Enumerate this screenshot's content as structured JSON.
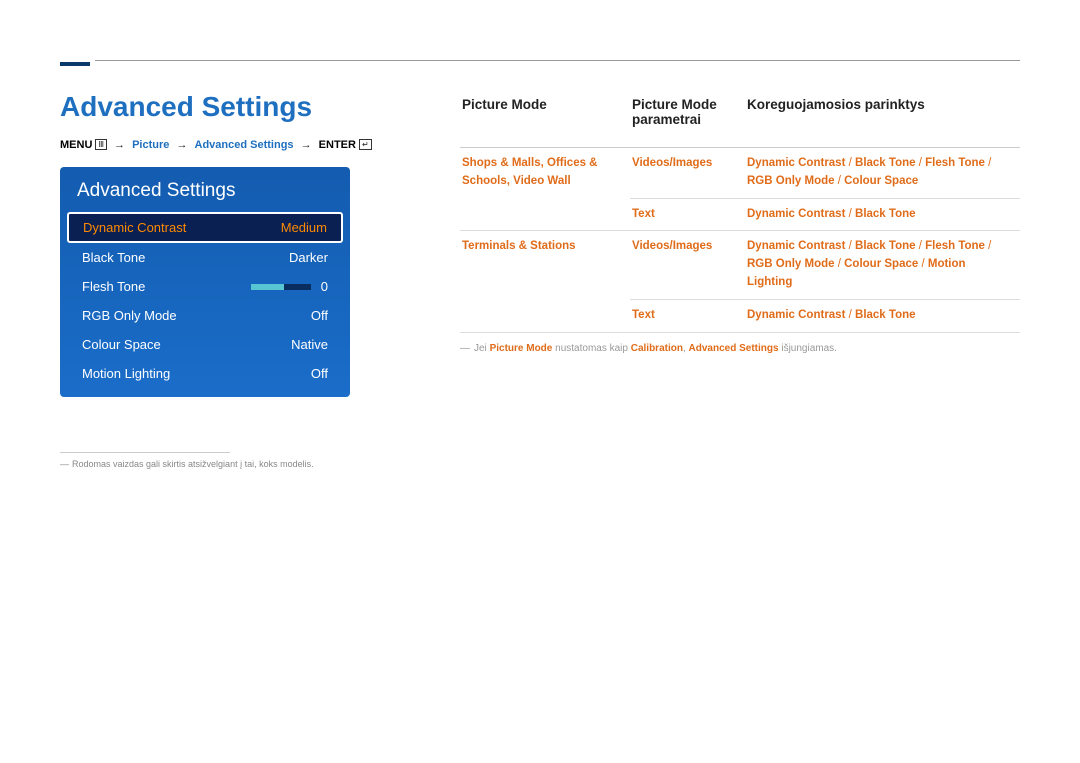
{
  "page": {
    "title": "Advanced Settings"
  },
  "breadcrumb": {
    "menu": "MENU",
    "picture": "Picture",
    "advanced": "Advanced Settings",
    "enter": "ENTER"
  },
  "panel": {
    "title": "Advanced Settings",
    "rows": {
      "dynamic_contrast": {
        "label": "Dynamic Contrast",
        "value": "Medium"
      },
      "black_tone": {
        "label": "Black Tone",
        "value": "Darker"
      },
      "flesh_tone": {
        "label": "Flesh Tone",
        "value": "0"
      },
      "rgb_only": {
        "label": "RGB Only Mode",
        "value": "Off"
      },
      "colour_space": {
        "label": "Colour Space",
        "value": "Native"
      },
      "motion_lighting": {
        "label": "Motion Lighting",
        "value": "Off"
      }
    }
  },
  "footnote_left": "Rodomas vaizdas gali skirtis atsižvelgiant į tai, koks modelis.",
  "table": {
    "headers": {
      "c1": "Picture Mode",
      "c2": "Picture Mode parametrai",
      "c3": "Koreguojamosios parinktys"
    },
    "row1": {
      "mode_a": "Shops & Malls",
      "mode_b": "Offices & Schools",
      "mode_c": "Video Wall",
      "param": "Videos/Images",
      "o1": "Dynamic Contrast",
      "o2": "Black Tone",
      "o3": "Flesh Tone",
      "o4": "RGB Only Mode",
      "o5": "Colour Space"
    },
    "row2": {
      "param": "Text",
      "o1": "Dynamic Contrast",
      "o2": "Black Tone"
    },
    "row3": {
      "mode": "Terminals & Stations",
      "param": "Videos/Images",
      "o1": "Dynamic Contrast",
      "o2": "Black Tone",
      "o3": "Flesh Tone",
      "o4": "RGB Only Mode",
      "o5": "Colour Space",
      "o6": "Motion Lighting"
    },
    "row4": {
      "param": "Text",
      "o1": "Dynamic Contrast",
      "o2": "Black Tone"
    }
  },
  "note_right": {
    "pre": "Jei ",
    "b1": "Picture Mode",
    "mid1": " nustatomas kaip ",
    "b2": "Calibration",
    "mid2": ", ",
    "b3": "Advanced Settings",
    "post": " išjungiamas."
  },
  "colors": {
    "heading_blue": "#1e6fbf",
    "panel_top": "#135cb0",
    "panel_bottom": "#1a6dc9",
    "selected_bg": "#0a1f52",
    "accent_orange": "#e06c1a",
    "highlight_orange": "#ff8a00"
  }
}
